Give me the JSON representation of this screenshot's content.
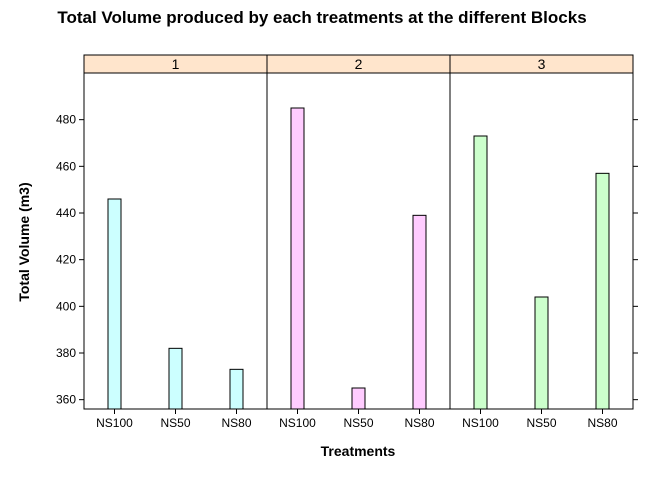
{
  "chart_data": {
    "type": "bar",
    "title": "Total Volume produced by each treatments at the different Blocks",
    "xlabel": "Treatments",
    "ylabel": "Total Volume (m3)",
    "ylim": [
      356,
      500
    ],
    "yticks": [
      360,
      380,
      400,
      420,
      440,
      460,
      480
    ],
    "categories": [
      "NS100",
      "NS50",
      "NS80"
    ],
    "strip_color": "#ffe5cc",
    "panels": [
      {
        "label": "1",
        "color": "#ccffff",
        "values": [
          446,
          382,
          373
        ]
      },
      {
        "label": "2",
        "color": "#ffccff",
        "values": [
          485,
          365,
          439
        ]
      },
      {
        "label": "3",
        "color": "#ccffcc",
        "values": [
          473,
          404,
          457
        ]
      }
    ]
  }
}
